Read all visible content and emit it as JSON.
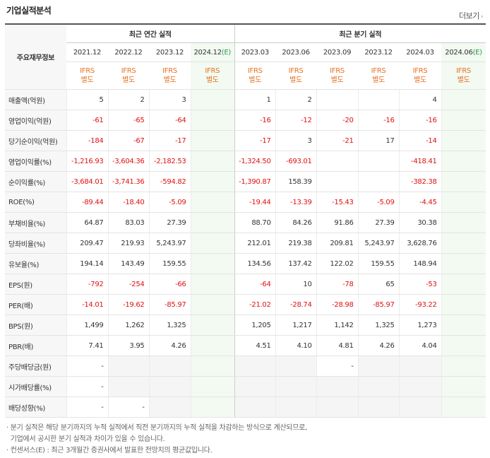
{
  "header": {
    "title": "기업실적분석",
    "more_label": "더보기",
    "more_arrow": "›"
  },
  "table": {
    "col_label": "주요재무정보",
    "group_annual": "최근 연간 실적",
    "group_quarter": "최근 분기 실적",
    "periods": [
      "2021.12",
      "2022.12",
      "2023.12",
      "2024.12",
      "2023.03",
      "2023.06",
      "2023.09",
      "2023.12",
      "2024.03",
      "2024.06"
    ],
    "est_mark": "(E)",
    "ifrs": "IFRS",
    "byeoldo": "별도",
    "rows": [
      {
        "label": "매출액(억원)",
        "values": [
          "5",
          "2",
          "3",
          "",
          "1",
          "2",
          "",
          "",
          "4",
          ""
        ]
      },
      {
        "label": "영업이익(억원)",
        "values": [
          "-61",
          "-65",
          "-64",
          "",
          "-16",
          "-12",
          "-20",
          "-16",
          "-16",
          ""
        ]
      },
      {
        "label": "당기순이익(억원)",
        "values": [
          "-184",
          "-67",
          "-17",
          "",
          "-17",
          "3",
          "-21",
          "17",
          "-14",
          ""
        ]
      },
      {
        "label": "영업이익률(%)",
        "values": [
          "-1,216.93",
          "-3,604.36",
          "-2,182.53",
          "",
          "-1,324.50",
          "-693.01",
          "",
          "",
          "-418.41",
          ""
        ]
      },
      {
        "label": "순이익률(%)",
        "values": [
          "-3,684.01",
          "-3,741.36",
          "-594.82",
          "",
          "-1,390.87",
          "158.39",
          "",
          "",
          "-382.38",
          ""
        ]
      },
      {
        "label": "ROE(%)",
        "values": [
          "-89.44",
          "-18.40",
          "-5.09",
          "",
          "-19.44",
          "-13.39",
          "-15.43",
          "-5.09",
          "-4.45",
          ""
        ]
      },
      {
        "label": "부채비율(%)",
        "values": [
          "64.87",
          "83.03",
          "27.39",
          "",
          "88.70",
          "84.26",
          "91.86",
          "27.39",
          "30.38",
          ""
        ]
      },
      {
        "label": "당좌비율(%)",
        "values": [
          "209.47",
          "219.93",
          "5,243.97",
          "",
          "212.01",
          "219.38",
          "209.81",
          "5,243.97",
          "3,628.76",
          ""
        ]
      },
      {
        "label": "유보율(%)",
        "values": [
          "194.14",
          "143.49",
          "159.55",
          "",
          "134.56",
          "137.42",
          "122.02",
          "159.55",
          "148.94",
          ""
        ]
      },
      {
        "label": "EPS(원)",
        "values": [
          "-792",
          "-254",
          "-66",
          "",
          "-64",
          "10",
          "-78",
          "65",
          "-53",
          ""
        ]
      },
      {
        "label": "PER(배)",
        "values": [
          "-14.01",
          "-19.62",
          "-85.97",
          "",
          "-21.02",
          "-28.74",
          "-28.98",
          "-85.97",
          "-93.22",
          ""
        ]
      },
      {
        "label": "BPS(원)",
        "values": [
          "1,499",
          "1,262",
          "1,325",
          "",
          "1,205",
          "1,217",
          "1,142",
          "1,325",
          "1,273",
          ""
        ]
      },
      {
        "label": "PBR(배)",
        "values": [
          "7.41",
          "3.95",
          "4.26",
          "",
          "4.51",
          "4.10",
          "4.81",
          "4.26",
          "4.04",
          ""
        ]
      },
      {
        "label": "주당배당금(원)",
        "values": [
          "-",
          "",
          "",
          "",
          "",
          "",
          "-",
          "",
          "",
          ""
        ]
      },
      {
        "label": "시가배당률(%)",
        "values": [
          "-",
          "",
          "",
          "",
          "",
          "",
          "",
          "",
          "",
          ""
        ]
      },
      {
        "label": "배당성향(%)",
        "values": [
          "-",
          "-",
          "",
          "",
          "",
          "",
          "",
          "",
          "",
          ""
        ]
      }
    ]
  },
  "notes": [
    "· 분기 실적은 해당 분기까지의 누적 실적에서 직전 분기까지의 누적 실적을 차감하는 방식으로 계산되므로,",
    "  기업에서 공시한 분기 실적과 차이가 있을 수 있습니다.",
    "· 컨센서스(E) : 최근 3개월간 증권사에서 발표한 전망치의 평균값입니다."
  ],
  "colors": {
    "ifrs": "#e8711f",
    "negative": "#e01111",
    "estimate_bg": "#f2faf2",
    "estimate_mark": "#2a9d4a"
  }
}
